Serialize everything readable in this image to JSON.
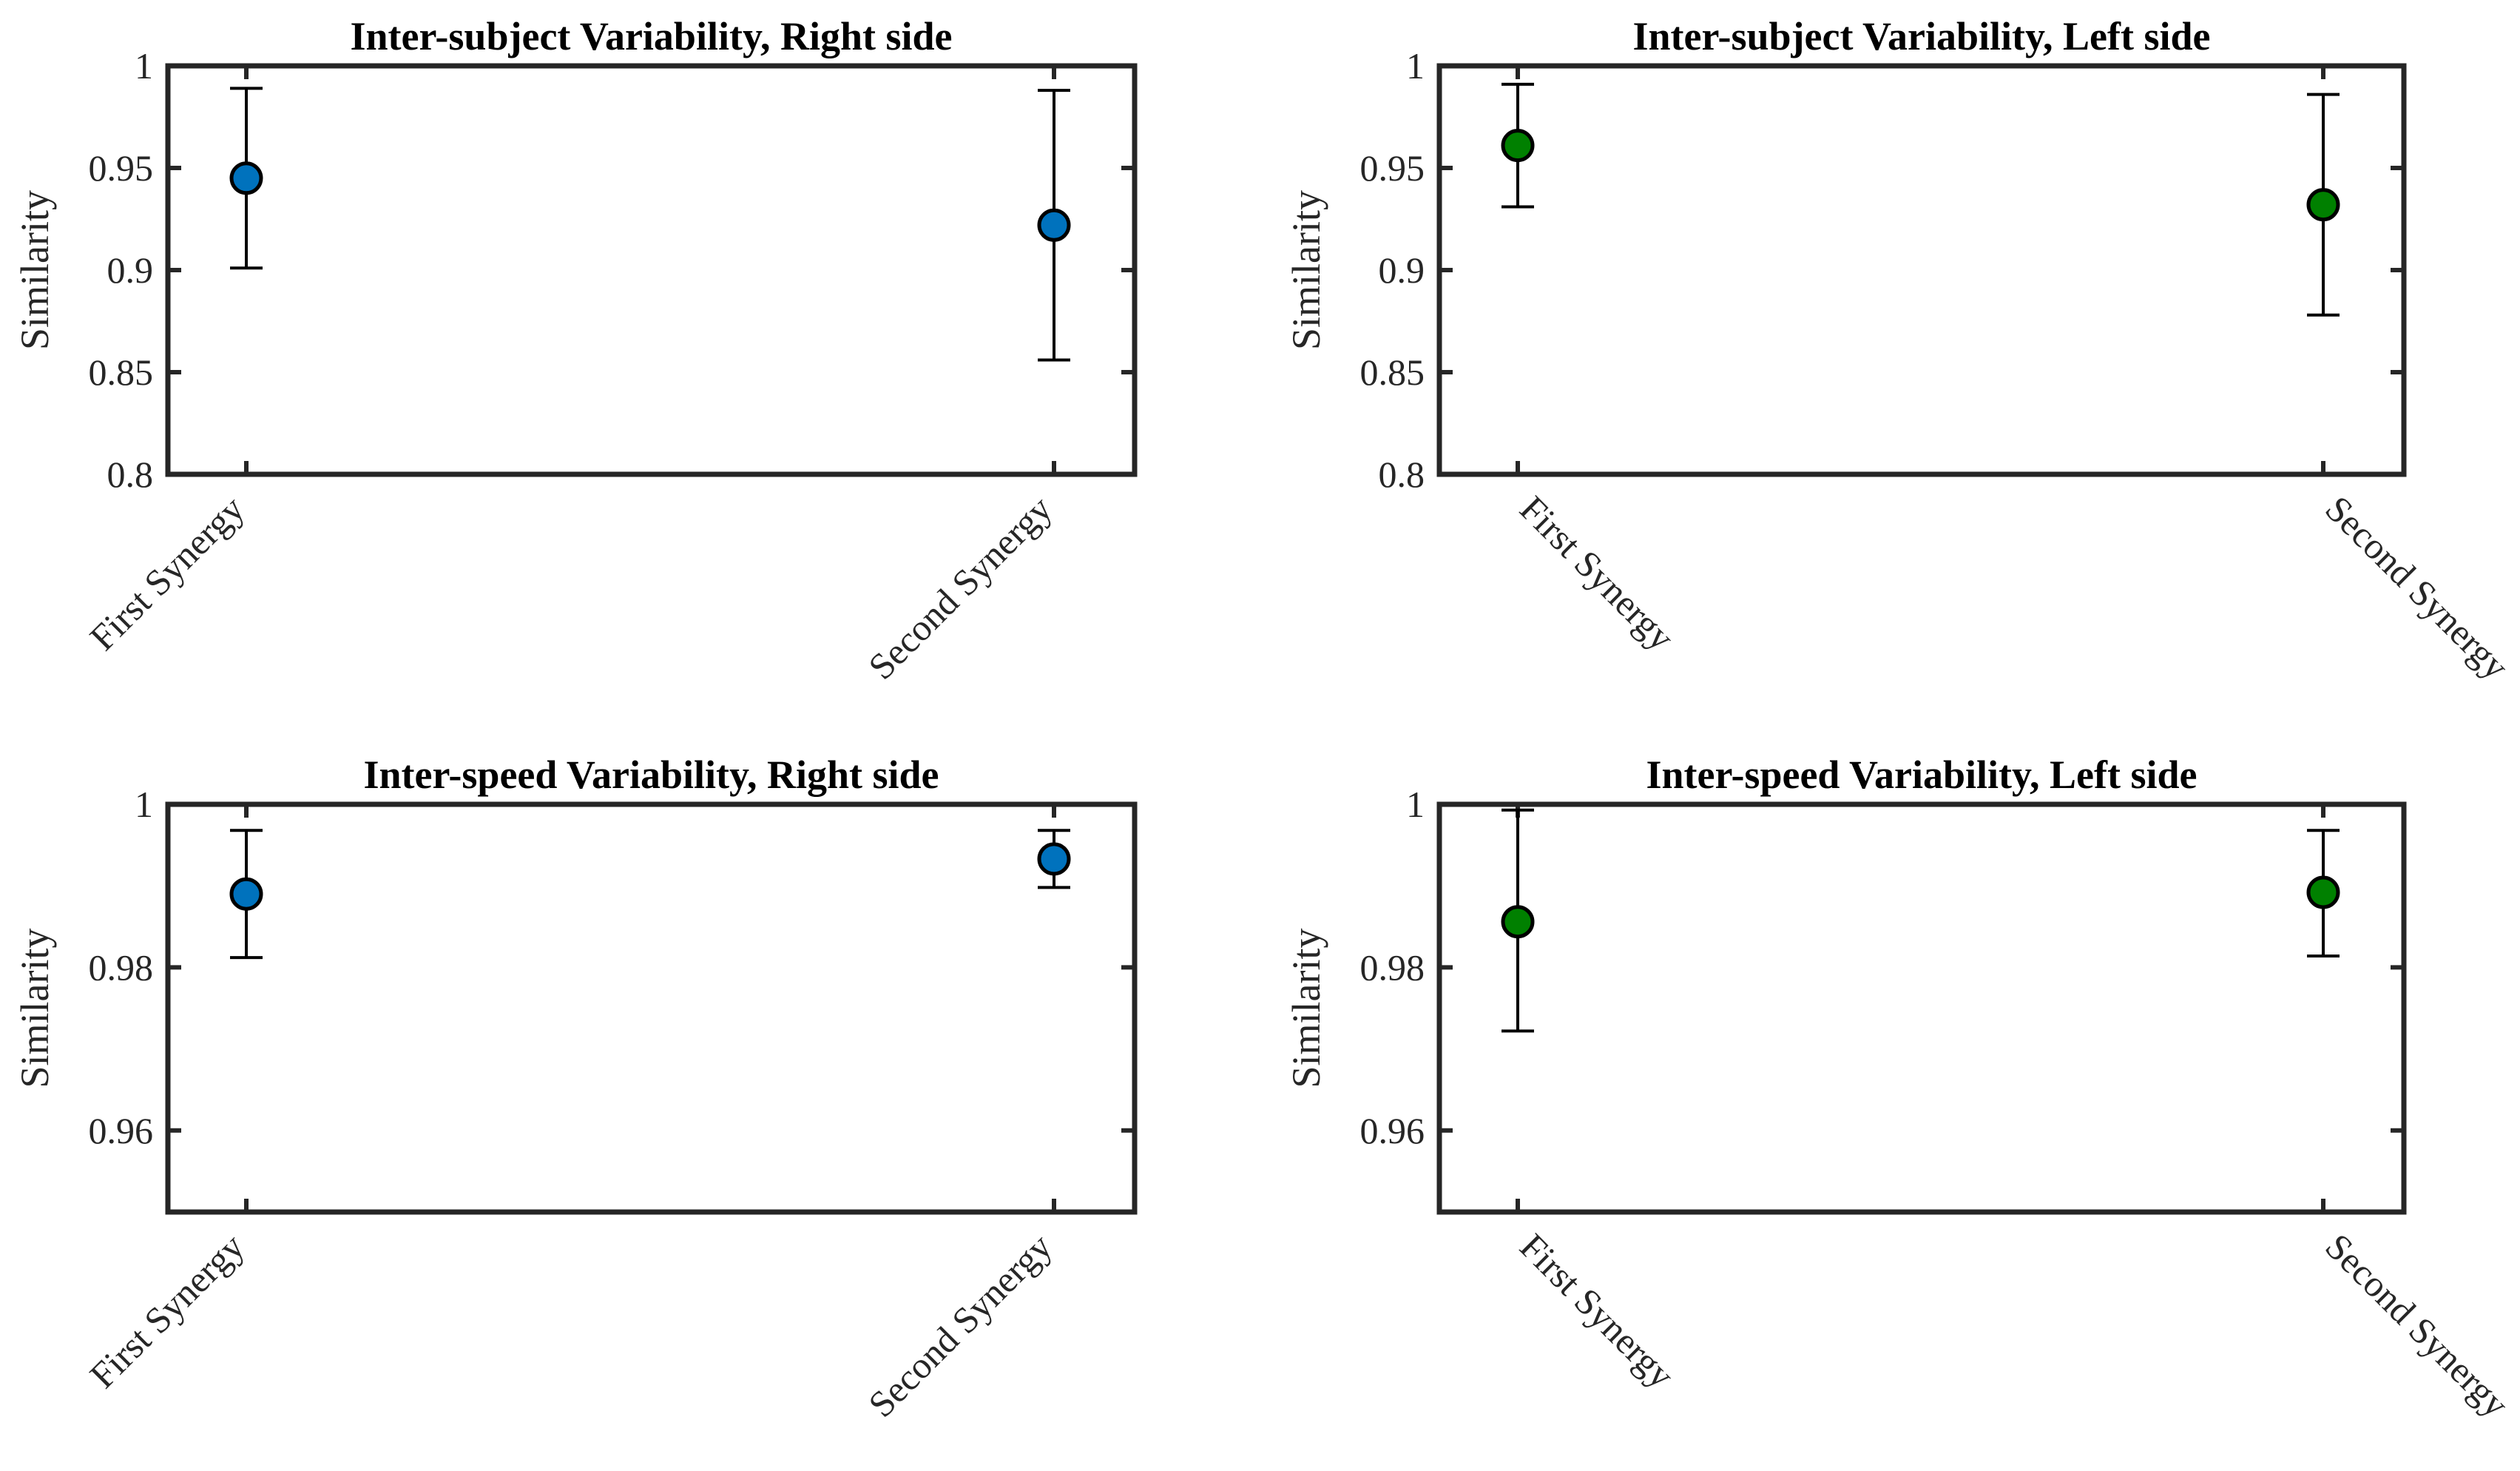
{
  "chart_data": [
    {
      "type": "scatter",
      "title": "Inter-subject Variability, Right side",
      "ylabel": "Similarity",
      "categories": [
        "First Synergy",
        "Second Synergy"
      ],
      "ylim": [
        0.8,
        1
      ],
      "yticks": [
        "0.8",
        "0.85",
        "0.9",
        "0.95",
        "1"
      ],
      "marker_color": "#0072BD",
      "series": [
        {
          "values": [
            0.945,
            0.922
          ],
          "error_low": [
            0.901,
            0.856
          ],
          "error_high": [
            0.989,
            0.988
          ]
        }
      ]
    },
    {
      "type": "scatter",
      "title": "Inter-subject Variability, Left side",
      "ylabel": "Similarity",
      "categories": [
        "First Synergy",
        "Second Synergy"
      ],
      "ylim": [
        0.8,
        1
      ],
      "yticks": [
        "0.8",
        "0.85",
        "0.9",
        "0.95",
        "1"
      ],
      "marker_color": "#008000",
      "series": [
        {
          "values": [
            0.961,
            0.932
          ],
          "error_low": [
            0.931,
            0.878
          ],
          "error_high": [
            0.991,
            0.986
          ]
        }
      ]
    },
    {
      "type": "scatter",
      "title": "Inter-speed Variability, Right side",
      "ylabel": "Similarity",
      "categories": [
        "First Synergy",
        "Second Synergy"
      ],
      "ylim": [
        0.95,
        1
      ],
      "yticks": [
        "0.96",
        "0.98",
        "1"
      ],
      "marker_color": "#0072BD",
      "series": [
        {
          "values": [
            0.989,
            0.9933
          ],
          "error_low": [
            0.9812,
            0.9898
          ],
          "error_high": [
            0.9968,
            0.9968
          ]
        }
      ]
    },
    {
      "type": "scatter",
      "title": "Inter-speed Variability, Left side",
      "ylabel": "Similarity",
      "categories": [
        "First Synergy",
        "Second Synergy"
      ],
      "ylim": [
        0.95,
        1
      ],
      "yticks": [
        "0.96",
        "0.98",
        "1"
      ],
      "marker_color": "#008000",
      "series": [
        {
          "values": [
            0.9856,
            0.9892
          ],
          "error_low": [
            0.9722,
            0.9814
          ],
          "error_high": [
            0.9993,
            0.9968
          ]
        }
      ]
    }
  ]
}
